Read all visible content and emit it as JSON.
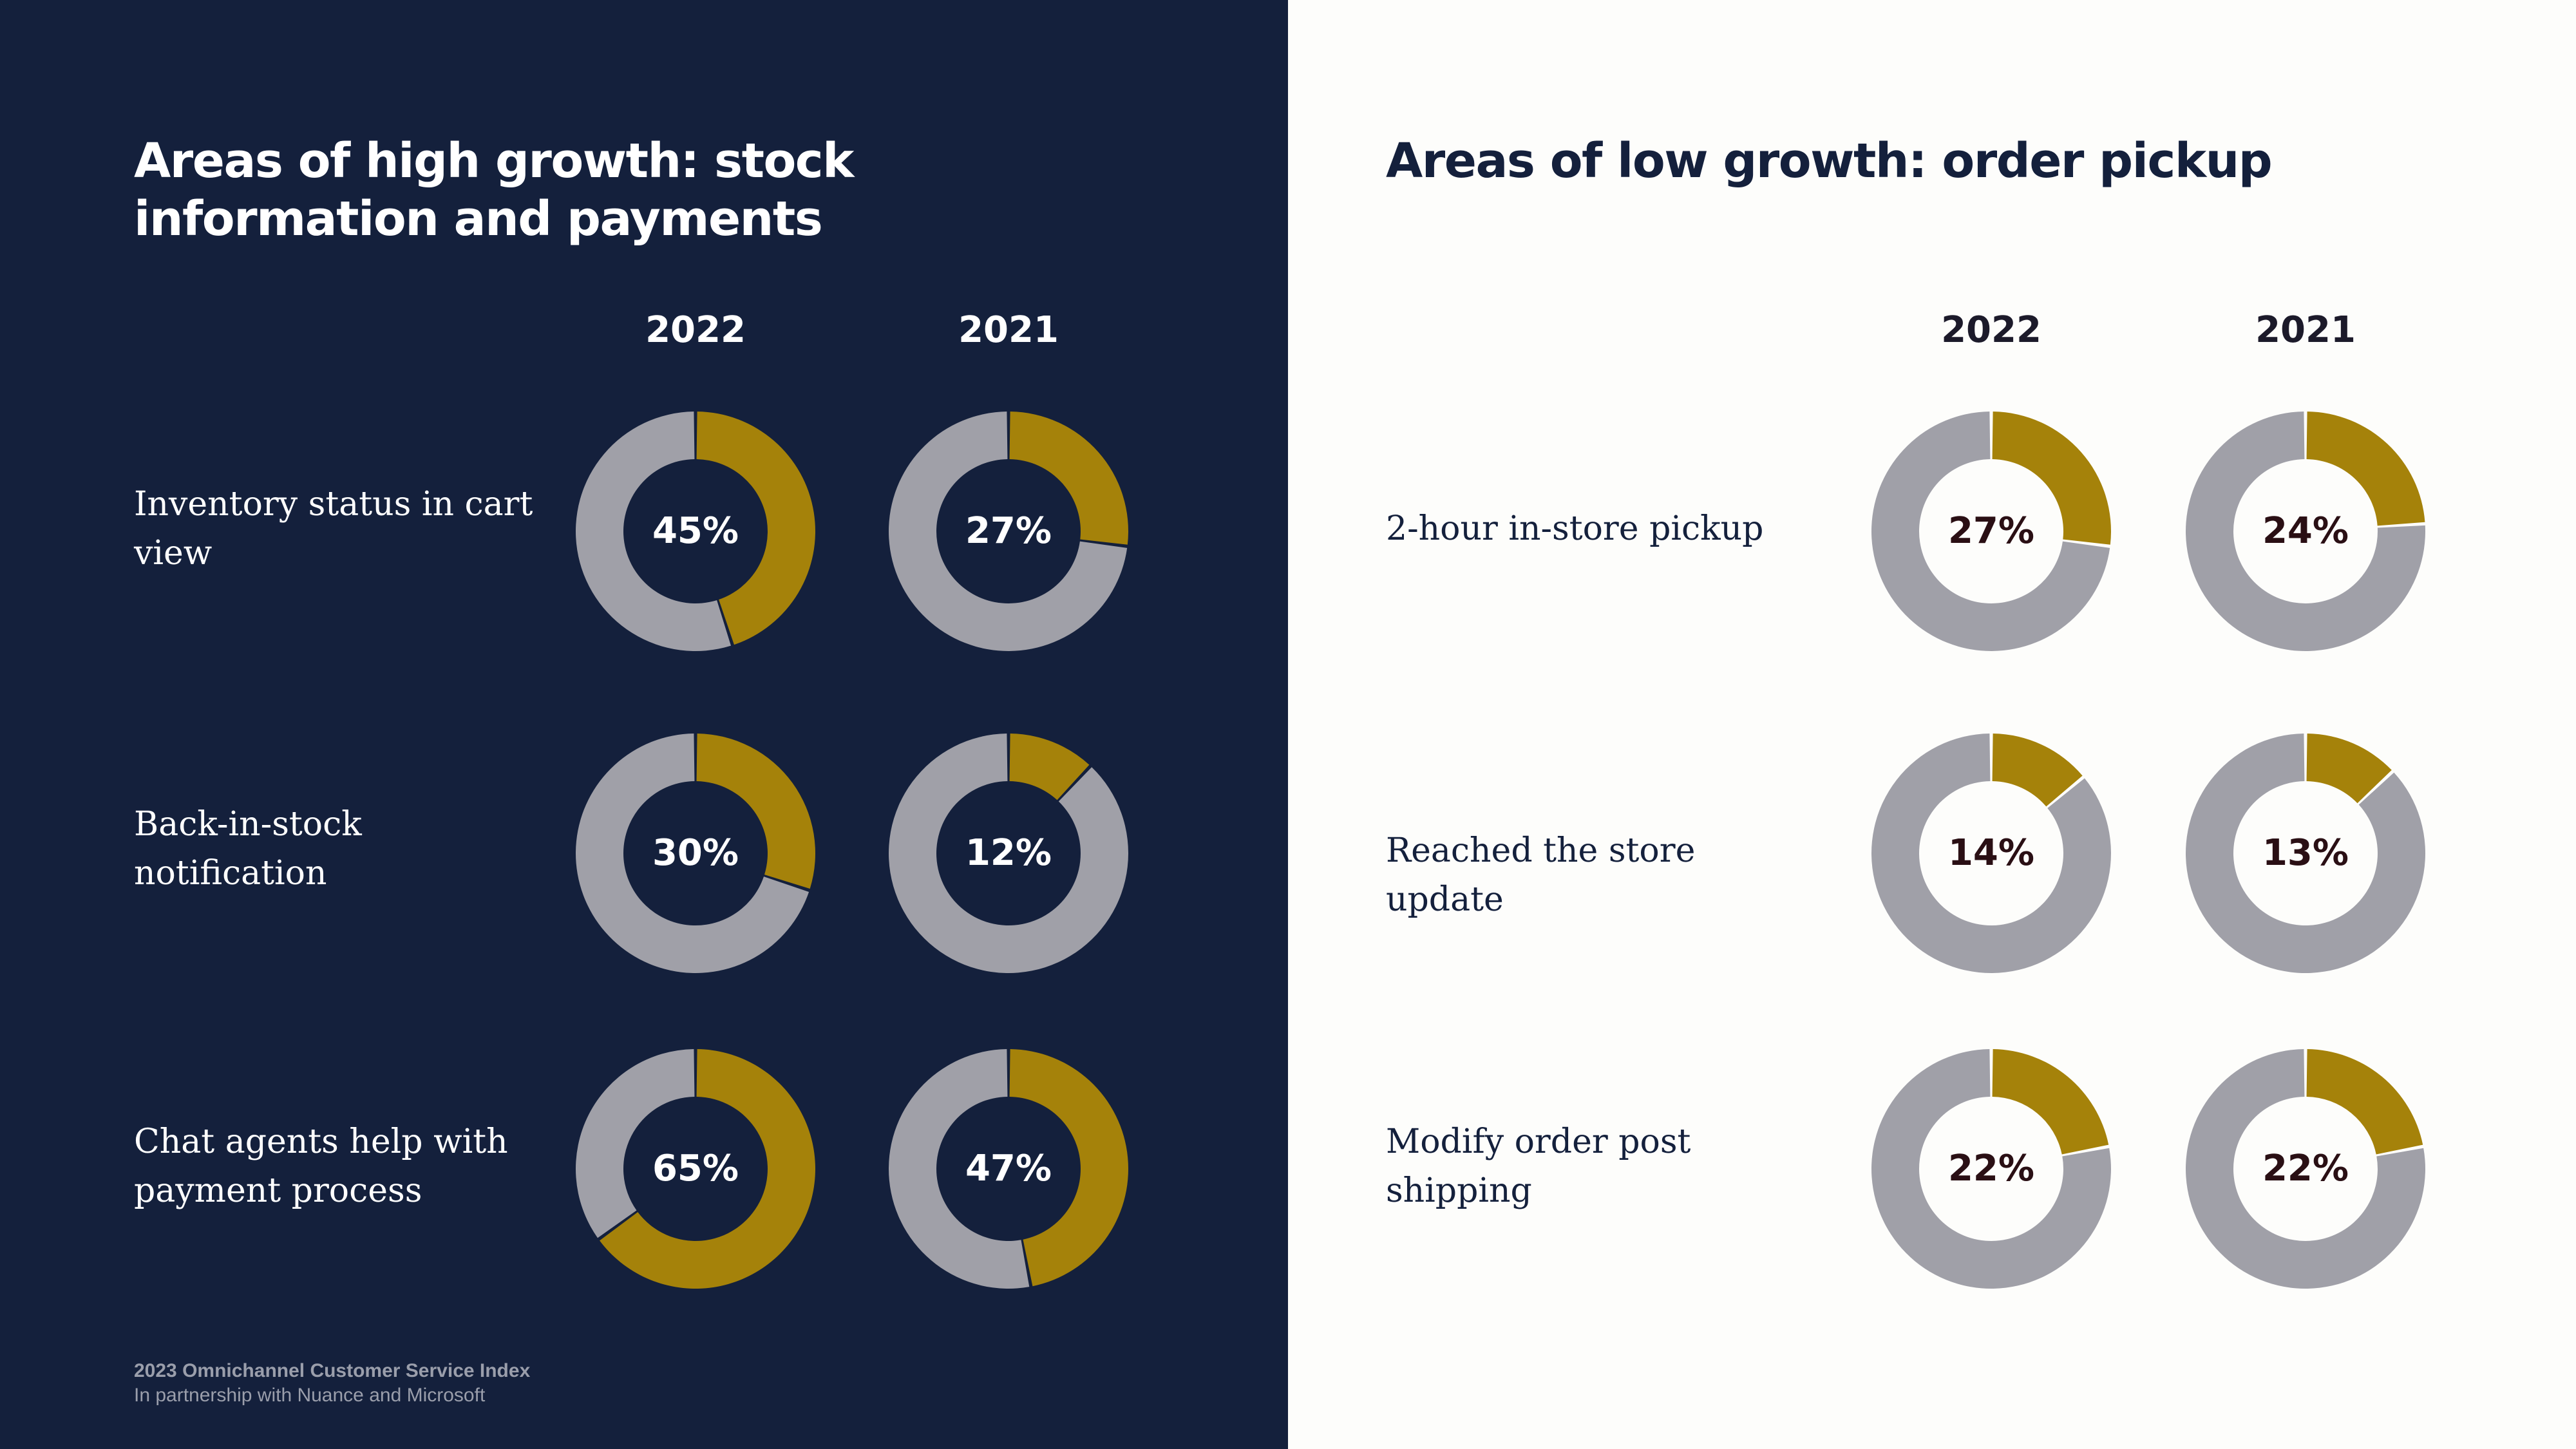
{
  "left": {
    "title": "Areas of high growth: stock information and payments",
    "years": [
      "2022",
      "2021"
    ],
    "rows": [
      {
        "label": "Inventory status in cart view"
      },
      {
        "label": "Back-in-stock notification"
      },
      {
        "label": "Chat agents help with payment process"
      }
    ]
  },
  "right": {
    "title": "Areas of low growth: order pickup",
    "years": [
      "2022",
      "2021"
    ],
    "rows": [
      {
        "label": "2-hour in-store pickup"
      },
      {
        "label": "Reached the store update"
      },
      {
        "label": "Modify order post shipping"
      }
    ]
  },
  "footer": {
    "title": "2023 Omnichannel Customer Service Index",
    "subtitle": "In partnership with Nuance and Microsoft"
  },
  "colors": {
    "left_background": "#14203c",
    "right_background": "#fdfdfb",
    "accent": "#a5820a",
    "remainder": "#a0a0a8"
  },
  "chart_data": [
    {
      "type": "pie",
      "title": "Areas of high growth: stock information and payments",
      "categories": [
        "Inventory status in cart view",
        "Back-in-stock notification",
        "Chat agents help with payment process"
      ],
      "series": [
        {
          "name": "2022",
          "values": [
            45,
            30,
            65
          ],
          "labels": [
            "45%",
            "30%",
            "65%"
          ]
        },
        {
          "name": "2021",
          "values": [
            27,
            12,
            47
          ],
          "labels": [
            "27%",
            "12%",
            "47%"
          ]
        }
      ]
    },
    {
      "type": "pie",
      "title": "Areas of low growth: order pickup",
      "categories": [
        "2-hour in-store pickup",
        "Reached the store update",
        "Modify order post shipping"
      ],
      "series": [
        {
          "name": "2022",
          "values": [
            27,
            14,
            22
          ],
          "labels": [
            "27%",
            "14%",
            "22%"
          ]
        },
        {
          "name": "2021",
          "values": [
            24,
            13,
            22
          ],
          "labels": [
            "24%",
            "13%",
            "22%"
          ]
        }
      ]
    }
  ]
}
